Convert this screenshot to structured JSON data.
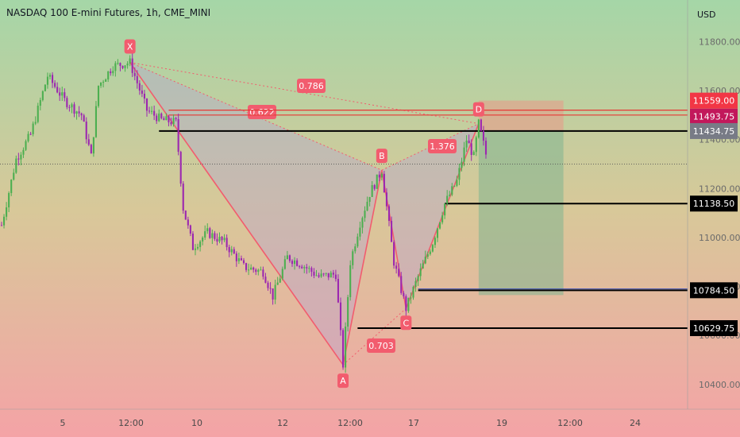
{
  "header": {
    "title": "NASDAQ 100 E-mini Futures, 1h, CME_MINI",
    "currency": "USD"
  },
  "chart_data": {
    "type": "candlestick",
    "y_axis": {
      "ylim": [
        10300,
        11900
      ],
      "ticks": [
        10400,
        10600,
        10800,
        11000,
        11200,
        11400,
        11600,
        11800
      ],
      "tick_labels": [
        "10400.00",
        "10600.00",
        "10800.00",
        "11000.00",
        "11200.00",
        "11400.00",
        "11600.00",
        "11800.00"
      ]
    },
    "x_axis": {
      "ticks": [
        "5",
        "12:00",
        "10",
        "12",
        "12:00",
        "17",
        "19",
        "12:00",
        "24"
      ]
    },
    "harmonic_pattern": {
      "points": [
        {
          "label": "X",
          "bar": 53,
          "price": 11715
        },
        {
          "label": "A",
          "bar": 141,
          "price": 10480
        },
        {
          "label": "B",
          "bar": 157,
          "price": 11275
        },
        {
          "label": "C",
          "bar": 167,
          "price": 10710
        },
        {
          "label": "D",
          "bar": 197,
          "price": 11465
        }
      ],
      "ratios": [
        {
          "label": "0.786",
          "from": "X",
          "to": "D",
          "price": 11605
        },
        {
          "label": "0.622",
          "from": "X",
          "to": "B",
          "price": 11518
        },
        {
          "label": "1.376",
          "from": "B",
          "to": "D",
          "price": 11370
        },
        {
          "label": "0.703",
          "from": "A",
          "to": "C",
          "price": 10625
        }
      ]
    },
    "levels": [
      {
        "price": 11434.75,
        "label": "11434.75",
        "start_bar": 65
      },
      {
        "price": 11138.5,
        "label": "11138.50",
        "start_bar": 183
      },
      {
        "price": 10784.5,
        "label": "10784.50",
        "start_bar": 172
      },
      {
        "price": 10629.75,
        "label": "10629.75",
        "start_bar": 147
      }
    ],
    "red_lines": [
      11520,
      11500
    ],
    "current_price": 11300,
    "position_box": {
      "start_bar": 197,
      "end_bar": 232,
      "stop_price": 11559.0,
      "entry_price": 11434.75,
      "target_price": 10765
    },
    "price_tags": [
      {
        "label": "11559.00",
        "price": 11559.0,
        "color": "#f23645"
      },
      {
        "label": "11493.75",
        "price": 11493.75,
        "color": "#c2185b"
      },
      {
        "label": "11434.75",
        "price": 11434.75,
        "color": "#787b86"
      },
      {
        "label": "11138.50",
        "price": 11138.5,
        "color": "#000000"
      },
      {
        "label": "10784.50",
        "price": 10784.5,
        "color": "#000000"
      },
      {
        "label": "10629.75",
        "price": 10629.75,
        "color": "#000000"
      }
    ],
    "colors": {
      "up": "#4caf50",
      "down": "#9c27b0",
      "pattern": "#f25c6e",
      "bg_top": "#a5d6a7",
      "bg_bottom": "#f4a3a6"
    }
  }
}
